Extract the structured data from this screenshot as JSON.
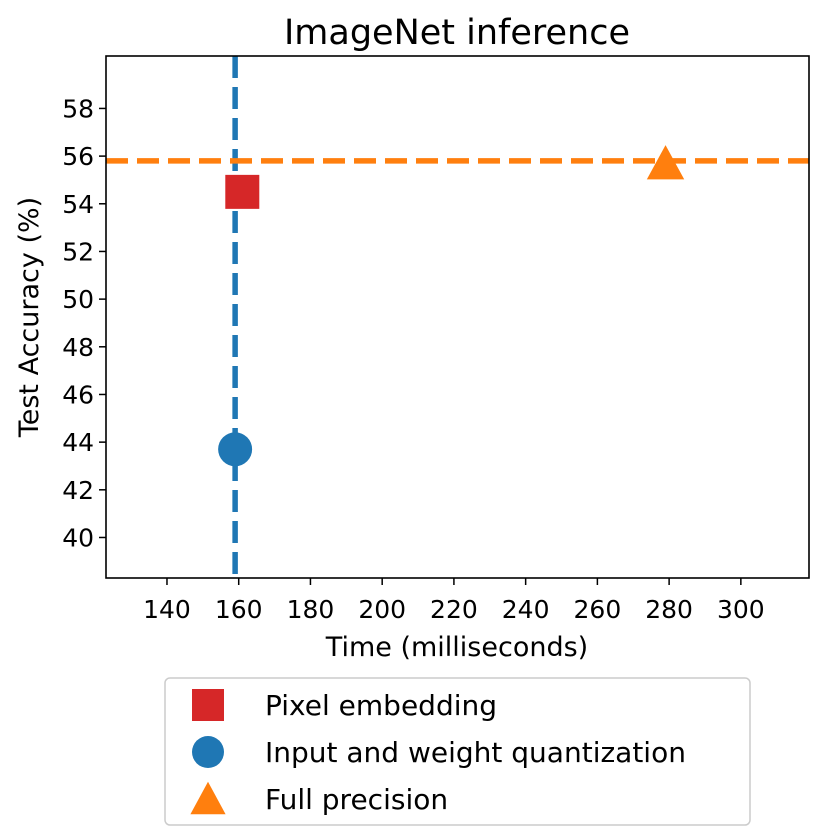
{
  "chart_data": {
    "type": "scatter",
    "title": "ImageNet inference",
    "xlabel": "Time (milliseconds)",
    "ylabel": "Test Accuracy (%)",
    "xlim": [
      123,
      319
    ],
    "ylim": [
      38.3,
      60.2
    ],
    "xticks": [
      140,
      160,
      180,
      200,
      220,
      240,
      260,
      280,
      300
    ],
    "yticks": [
      40,
      42,
      44,
      46,
      48,
      50,
      52,
      54,
      56,
      58
    ],
    "grid": false,
    "legend_position": "below-plot",
    "series": [
      {
        "name": "Pixel embedding",
        "marker": "square",
        "color": "#d62728",
        "x": [
          161
        ],
        "y": [
          54.5
        ]
      },
      {
        "name": "Input and weight quantization",
        "marker": "circle",
        "color": "#1f77b4",
        "x": [
          159
        ],
        "y": [
          43.7
        ]
      },
      {
        "name": "Full precision",
        "marker": "triangle",
        "color": "#ff7f0e",
        "x": [
          279
        ],
        "y": [
          55.7
        ]
      }
    ],
    "reference_lines": [
      {
        "orientation": "vertical",
        "value": 159,
        "style": "dashed",
        "color": "#1f77b4"
      },
      {
        "orientation": "horizontal",
        "value": 55.8,
        "style": "dashed",
        "color": "#ff7f0e"
      }
    ]
  }
}
